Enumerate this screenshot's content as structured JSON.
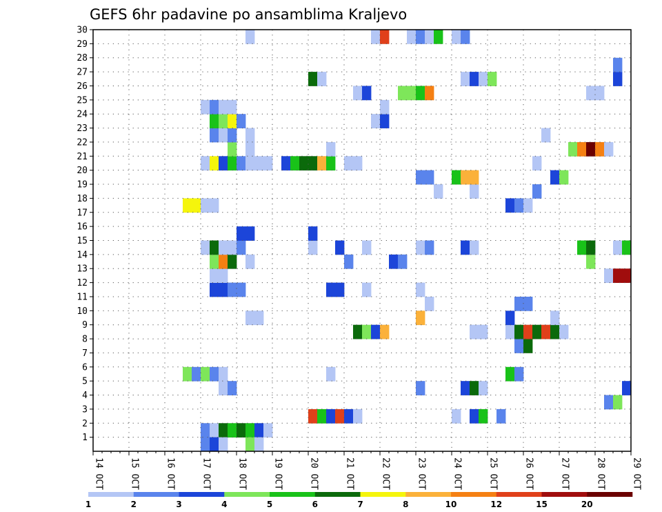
{
  "chart_data": {
    "type": "heatmap",
    "title": "GEFS 6hr padavine po ansamblima Kraljevo",
    "xlabel": "",
    "ylabel": "",
    "x_ticks": [
      "14 OCT",
      "15 OCT",
      "16 OCT",
      "17 OCT",
      "18 OCT",
      "19 OCT",
      "20 OCT",
      "21 OCT",
      "22 OCT",
      "23 OCT",
      "24 OCT",
      "25 OCT",
      "26 OCT",
      "27 OCT",
      "28 OCT",
      "29 OCT"
    ],
    "x_range_days": [
      14,
      29
    ],
    "y_ticks": [
      1,
      2,
      3,
      4,
      5,
      6,
      7,
      8,
      9,
      10,
      11,
      12,
      13,
      14,
      15,
      16,
      17,
      18,
      19,
      20,
      21,
      22,
      23,
      24,
      25,
      26,
      27,
      28,
      29,
      30
    ],
    "y_range": [
      0,
      30
    ],
    "grid": true,
    "colorbar": {
      "labels": [
        "1",
        "2",
        "3",
        "4",
        "5",
        "6",
        "7",
        "8",
        "10",
        "12",
        "15",
        "20"
      ],
      "colors": [
        "#b4c6f5",
        "#5a84ec",
        "#1c45d9",
        "#7ee65a",
        "#19c219",
        "#0b6a0b",
        "#f5f50c",
        "#fbb13a",
        "#f58013",
        "#e0401a",
        "#a00d0d",
        "#6b0000"
      ]
    },
    "cells": [
      [
        17.0,
        1,
        2
      ],
      [
        17.25,
        1,
        1
      ],
      [
        17.5,
        1,
        6
      ],
      [
        17.75,
        1,
        5
      ],
      [
        18.0,
        1,
        6
      ],
      [
        18.25,
        1,
        5
      ],
      [
        18.5,
        1,
        3
      ],
      [
        18.75,
        1,
        1
      ],
      [
        17.0,
        0,
        2
      ],
      [
        17.25,
        0,
        3
      ],
      [
        17.5,
        0,
        1
      ],
      [
        18.25,
        0,
        4
      ],
      [
        18.5,
        0,
        1
      ],
      [
        20.0,
        2,
        10
      ],
      [
        20.25,
        2,
        5
      ],
      [
        20.5,
        2,
        3
      ],
      [
        20.75,
        2,
        10
      ],
      [
        21.0,
        2,
        3
      ],
      [
        21.25,
        2,
        1
      ],
      [
        24.0,
        2,
        1
      ],
      [
        24.5,
        2,
        3
      ],
      [
        24.75,
        2,
        5
      ],
      [
        25.25,
        2,
        2
      ],
      [
        28.25,
        3,
        2
      ],
      [
        28.5,
        3,
        4
      ],
      [
        17.5,
        4,
        1
      ],
      [
        17.75,
        4,
        2
      ],
      [
        23.0,
        4,
        2
      ],
      [
        24.25,
        4,
        3
      ],
      [
        24.5,
        4,
        6
      ],
      [
        24.75,
        4,
        1
      ],
      [
        28.75,
        4,
        3
      ],
      [
        16.5,
        5,
        4
      ],
      [
        16.75,
        5,
        2
      ],
      [
        17.0,
        5,
        4
      ],
      [
        17.25,
        5,
        2
      ],
      [
        17.5,
        5,
        1
      ],
      [
        20.5,
        5,
        1
      ],
      [
        25.5,
        5,
        5
      ],
      [
        25.75,
        5,
        2
      ],
      [
        25.75,
        7,
        2
      ],
      [
        26.0,
        7,
        6
      ],
      [
        21.25,
        8,
        6
      ],
      [
        21.5,
        8,
        4
      ],
      [
        21.75,
        8,
        3
      ],
      [
        22.0,
        8,
        8
      ],
      [
        24.5,
        8,
        1
      ],
      [
        24.75,
        8,
        1
      ],
      [
        25.5,
        8,
        1
      ],
      [
        25.75,
        8,
        6
      ],
      [
        26.0,
        8,
        10
      ],
      [
        26.25,
        8,
        6
      ],
      [
        26.5,
        8,
        10
      ],
      [
        26.75,
        8,
        6
      ],
      [
        27.0,
        8,
        1
      ],
      [
        18.25,
        9,
        1
      ],
      [
        18.5,
        9,
        1
      ],
      [
        23.0,
        9,
        8
      ],
      [
        25.5,
        9,
        3
      ],
      [
        26.75,
        9,
        1
      ],
      [
        23.25,
        10,
        1
      ],
      [
        25.75,
        10,
        2
      ],
      [
        26.0,
        10,
        2
      ],
      [
        17.25,
        11,
        3
      ],
      [
        17.5,
        11,
        3
      ],
      [
        17.75,
        11,
        2
      ],
      [
        18.0,
        11,
        2
      ],
      [
        20.5,
        11,
        3
      ],
      [
        20.75,
        11,
        3
      ],
      [
        21.5,
        11,
        1
      ],
      [
        23.0,
        11,
        1
      ],
      [
        17.25,
        12,
        1
      ],
      [
        17.5,
        12,
        1
      ],
      [
        28.25,
        12,
        1
      ],
      [
        28.5,
        12,
        11
      ],
      [
        28.75,
        12,
        11
      ],
      [
        17.25,
        13,
        4
      ],
      [
        17.5,
        13,
        9
      ],
      [
        17.75,
        13,
        6
      ],
      [
        18.25,
        13,
        1
      ],
      [
        21.0,
        13,
        2
      ],
      [
        22.25,
        13,
        3
      ],
      [
        22.5,
        13,
        2
      ],
      [
        27.75,
        13,
        4
      ],
      [
        17.0,
        14,
        1
      ],
      [
        17.25,
        14,
        6
      ],
      [
        17.5,
        14,
        1
      ],
      [
        17.75,
        14,
        1
      ],
      [
        18.0,
        14,
        2
      ],
      [
        20.0,
        14,
        1
      ],
      [
        20.75,
        14,
        3
      ],
      [
        21.5,
        14,
        1
      ],
      [
        23.0,
        14,
        1
      ],
      [
        23.25,
        14,
        2
      ],
      [
        24.25,
        14,
        3
      ],
      [
        24.5,
        14,
        1
      ],
      [
        27.5,
        14,
        5
      ],
      [
        27.75,
        14,
        6
      ],
      [
        28.5,
        14,
        1
      ],
      [
        28.75,
        14,
        5
      ],
      [
        18.0,
        15,
        3
      ],
      [
        18.25,
        15,
        3
      ],
      [
        20.0,
        15,
        3
      ],
      [
        16.5,
        17,
        7
      ],
      [
        16.75,
        17,
        7
      ],
      [
        17.0,
        17,
        1
      ],
      [
        17.25,
        17,
        1
      ],
      [
        25.5,
        17,
        3
      ],
      [
        25.75,
        17,
        2
      ],
      [
        26.0,
        17,
        1
      ],
      [
        23.5,
        18,
        1
      ],
      [
        24.5,
        18,
        1
      ],
      [
        26.25,
        18,
        2
      ],
      [
        23.0,
        19,
        2
      ],
      [
        23.25,
        19,
        2
      ],
      [
        24.0,
        19,
        5
      ],
      [
        24.25,
        19,
        8
      ],
      [
        24.5,
        19,
        8
      ],
      [
        26.75,
        19,
        3
      ],
      [
        27.0,
        19,
        4
      ],
      [
        17.0,
        20,
        1
      ],
      [
        17.25,
        20,
        7
      ],
      [
        17.5,
        20,
        3
      ],
      [
        17.75,
        20,
        5
      ],
      [
        18.0,
        20,
        2
      ],
      [
        18.25,
        20,
        1
      ],
      [
        18.5,
        20,
        1
      ],
      [
        18.75,
        20,
        1
      ],
      [
        19.25,
        20,
        3
      ],
      [
        19.5,
        20,
        5
      ],
      [
        19.75,
        20,
        6
      ],
      [
        20.0,
        20,
        6
      ],
      [
        20.25,
        20,
        8
      ],
      [
        20.5,
        20,
        5
      ],
      [
        21.0,
        20,
        1
      ],
      [
        21.25,
        20,
        1
      ],
      [
        26.25,
        20,
        1
      ],
      [
        17.75,
        21,
        4
      ],
      [
        18.25,
        21,
        1
      ],
      [
        20.5,
        21,
        1
      ],
      [
        27.25,
        21,
        4
      ],
      [
        27.5,
        21,
        9
      ],
      [
        27.75,
        21,
        12
      ],
      [
        28.0,
        21,
        9
      ],
      [
        28.25,
        21,
        1
      ],
      [
        17.25,
        22,
        2
      ],
      [
        17.5,
        22,
        1
      ],
      [
        17.75,
        22,
        2
      ],
      [
        18.25,
        22,
        1
      ],
      [
        26.5,
        22,
        1
      ],
      [
        17.25,
        23,
        5
      ],
      [
        17.5,
        23,
        4
      ],
      [
        17.75,
        23,
        7
      ],
      [
        18.0,
        23,
        2
      ],
      [
        21.75,
        23,
        1
      ],
      [
        22.0,
        23,
        3
      ],
      [
        17.0,
        24,
        1
      ],
      [
        17.25,
        24,
        2
      ],
      [
        17.5,
        24,
        1
      ],
      [
        17.75,
        24,
        1
      ],
      [
        22.0,
        24,
        1
      ],
      [
        21.25,
        25,
        1
      ],
      [
        21.5,
        25,
        3
      ],
      [
        22.5,
        25,
        4
      ],
      [
        22.75,
        25,
        4
      ],
      [
        23.0,
        25,
        5
      ],
      [
        23.25,
        25,
        9
      ],
      [
        27.75,
        25,
        1
      ],
      [
        28.0,
        25,
        1
      ],
      [
        20.0,
        26,
        6
      ],
      [
        20.25,
        26,
        1
      ],
      [
        24.25,
        26,
        1
      ],
      [
        24.5,
        26,
        3
      ],
      [
        24.75,
        26,
        1
      ],
      [
        25.0,
        26,
        4
      ],
      [
        28.5,
        26,
        3
      ],
      [
        28.5,
        27,
        2
      ],
      [
        18.25,
        29,
        1
      ],
      [
        21.75,
        29,
        1
      ],
      [
        22.0,
        29,
        10
      ],
      [
        22.75,
        29,
        1
      ],
      [
        23.0,
        29,
        2
      ],
      [
        23.25,
        29,
        1
      ],
      [
        23.5,
        29,
        5
      ],
      [
        24.0,
        29,
        1
      ],
      [
        24.25,
        29,
        2
      ]
    ]
  }
}
